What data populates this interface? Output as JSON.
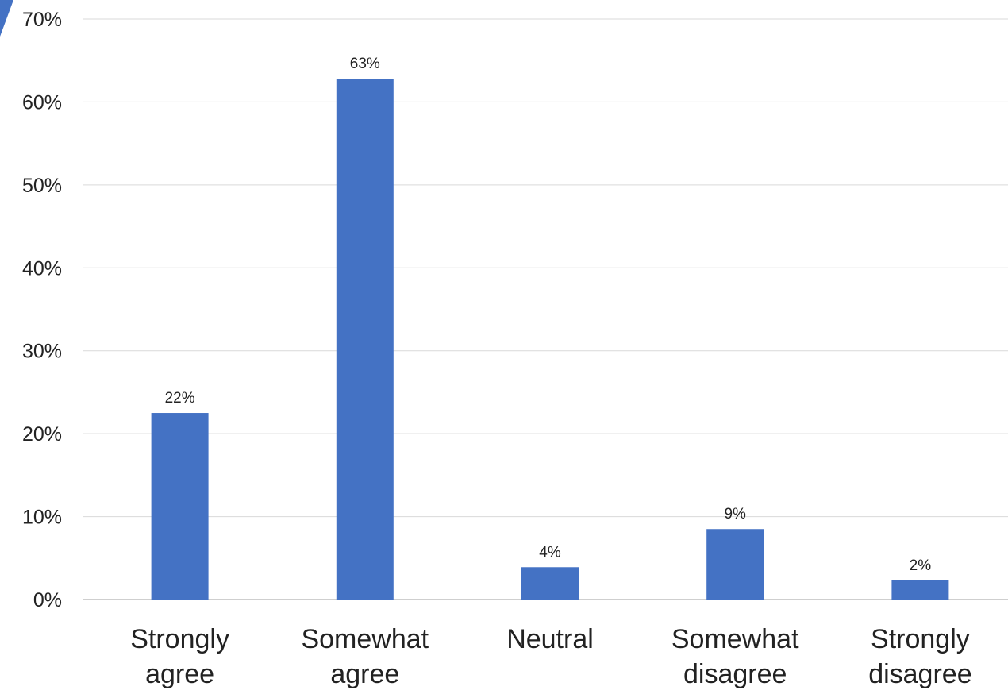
{
  "chart_data": {
    "type": "bar",
    "categories": [
      [
        "Strongly",
        "agree"
      ],
      [
        "Somewhat",
        "agree"
      ],
      [
        "Neutral"
      ],
      [
        "Somewhat",
        "disagree"
      ],
      [
        "Strongly",
        "disagree"
      ]
    ],
    "values": [
      22.5,
      62.8,
      3.9,
      8.5,
      2.3
    ],
    "data_labels": [
      "22%",
      "63%",
      "4%",
      "9%",
      "2%"
    ],
    "y_ticks": [
      "0%",
      "10%",
      "20%",
      "30%",
      "40%",
      "50%",
      "60%",
      "70%"
    ],
    "ylim": [
      0,
      70
    ],
    "grid": true,
    "legend": "none",
    "title": "",
    "xlabel": "",
    "ylabel": "",
    "colors": {
      "bar": "#4472c4",
      "grid": "#d9d9d9",
      "text": "#222222"
    }
  }
}
